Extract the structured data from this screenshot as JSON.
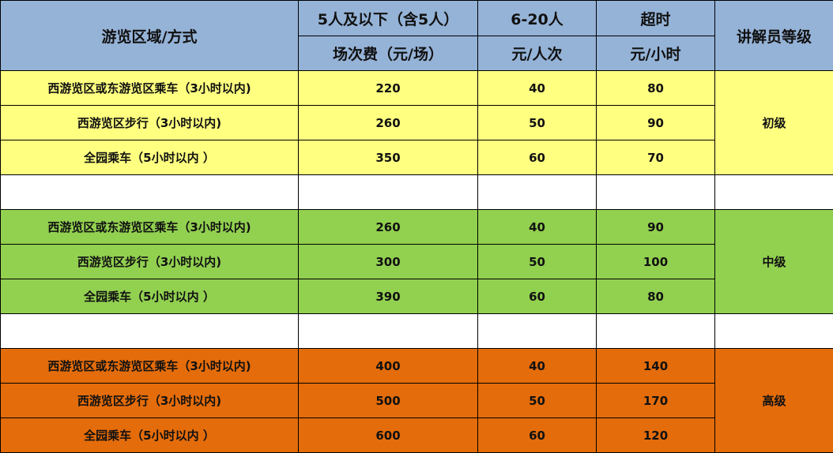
{
  "header": {
    "area_method": "游览区域/方式",
    "group_small": "5人及以下（含5人）",
    "group_mid": "6-20人",
    "overtime": "超时",
    "guide_level": "讲解员等级",
    "unit_small": "场次费（元/场）",
    "unit_mid": "元/人次",
    "unit_overtime": "元/小时"
  },
  "colors": {
    "header": "#95b3d7",
    "junior": "#ffff80",
    "intermediate": "#92d050",
    "senior": "#e46c0a"
  },
  "groups": [
    {
      "level": "初级",
      "rows": [
        {
          "route": "西游览区或东游览区乘车（3小时以内)",
          "small": "220",
          "mid": "40",
          "overtime": "80"
        },
        {
          "route": "西游览区步行（3小时以内)",
          "small": "260",
          "mid": "50",
          "overtime": "90"
        },
        {
          "route": "全园乘车（5小时以内 ）",
          "small": "350",
          "mid": "60",
          "overtime": "70"
        }
      ]
    },
    {
      "level": "中级",
      "rows": [
        {
          "route": "西游览区或东游览区乘车（3小时以内)",
          "small": "260",
          "mid": "40",
          "overtime": "90"
        },
        {
          "route": "西游览区步行（3小时以内)",
          "small": "300",
          "mid": "50",
          "overtime": "100"
        },
        {
          "route": "全园乘车（5小时以内 ）",
          "small": "390",
          "mid": "60",
          "overtime": "80"
        }
      ]
    },
    {
      "level": "高级",
      "rows": [
        {
          "route": "西游览区或东游览区乘车（3小时以内)",
          "small": "400",
          "mid": "40",
          "overtime": "140"
        },
        {
          "route": "西游览区步行（3小时以内)",
          "small": "500",
          "mid": "50",
          "overtime": "170"
        },
        {
          "route": "全园乘车（5小时以内 ）",
          "small": "600",
          "mid": "60",
          "overtime": "120"
        }
      ]
    }
  ]
}
